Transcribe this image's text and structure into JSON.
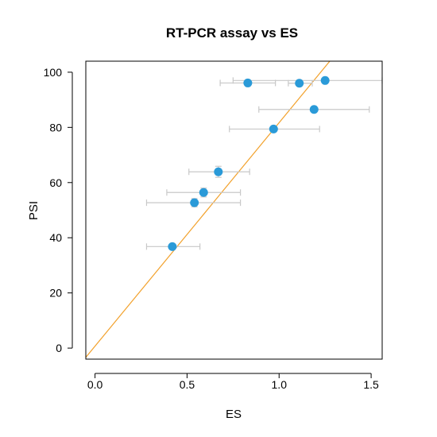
{
  "chart_data": {
    "type": "scatter",
    "title": "RT-PCR assay vs ES",
    "xlabel": "ES",
    "ylabel": "PSI",
    "xlim": [
      -0.05,
      1.56
    ],
    "ylim": [
      -4,
      104
    ],
    "xticks": [
      0.0,
      0.5,
      1.0,
      1.5
    ],
    "xtick_labels": [
      "0.0",
      "0.5",
      "1.0",
      "1.5"
    ],
    "yticks": [
      0,
      20,
      40,
      60,
      80,
      100
    ],
    "ytick_labels": [
      "0",
      "20",
      "40",
      "60",
      "80",
      "100"
    ],
    "grid": false,
    "legend": "none",
    "colors": {
      "points": "#2a9ad8",
      "error_bars": "#c8c8c8",
      "fit_line": "#f2a12b",
      "frame": "#000000"
    },
    "points": [
      {
        "x": 0.42,
        "y": 36.8,
        "x_low": 0.28,
        "x_high": 0.57,
        "y_low": 36.2,
        "y_high": 37.4
      },
      {
        "x": 0.54,
        "y": 52.7,
        "x_low": 0.28,
        "x_high": 0.79,
        "y_low": 51.2,
        "y_high": 54.2
      },
      {
        "x": 0.59,
        "y": 56.4,
        "x_low": 0.39,
        "x_high": 0.79,
        "y_low": 54.8,
        "y_high": 58.0
      },
      {
        "x": 0.67,
        "y": 63.9,
        "x_low": 0.51,
        "x_high": 0.84,
        "y_low": 61.9,
        "y_high": 65.9
      },
      {
        "x": 0.83,
        "y": 96.1,
        "x_low": 0.68,
        "x_high": 0.98,
        "y_low": 95.8,
        "y_high": 96.4
      },
      {
        "x": 0.97,
        "y": 79.4,
        "x_low": 0.73,
        "x_high": 1.22,
        "y_low": 78.9,
        "y_high": 79.9
      },
      {
        "x": 1.11,
        "y": 96.0,
        "x_low": 1.05,
        "x_high": 1.18,
        "y_low": 95.6,
        "y_high": 96.4
      },
      {
        "x": 1.19,
        "y": 86.5,
        "x_low": 0.89,
        "x_high": 1.49,
        "y_low": 86.0,
        "y_high": 87.0
      },
      {
        "x": 1.25,
        "y": 97.0,
        "x_low": 0.75,
        "x_high": 1.56,
        "y_low": 96.5,
        "y_high": 97.5
      }
    ],
    "fit_line": {
      "intercept": 0.7,
      "slope": 81.0
    }
  }
}
